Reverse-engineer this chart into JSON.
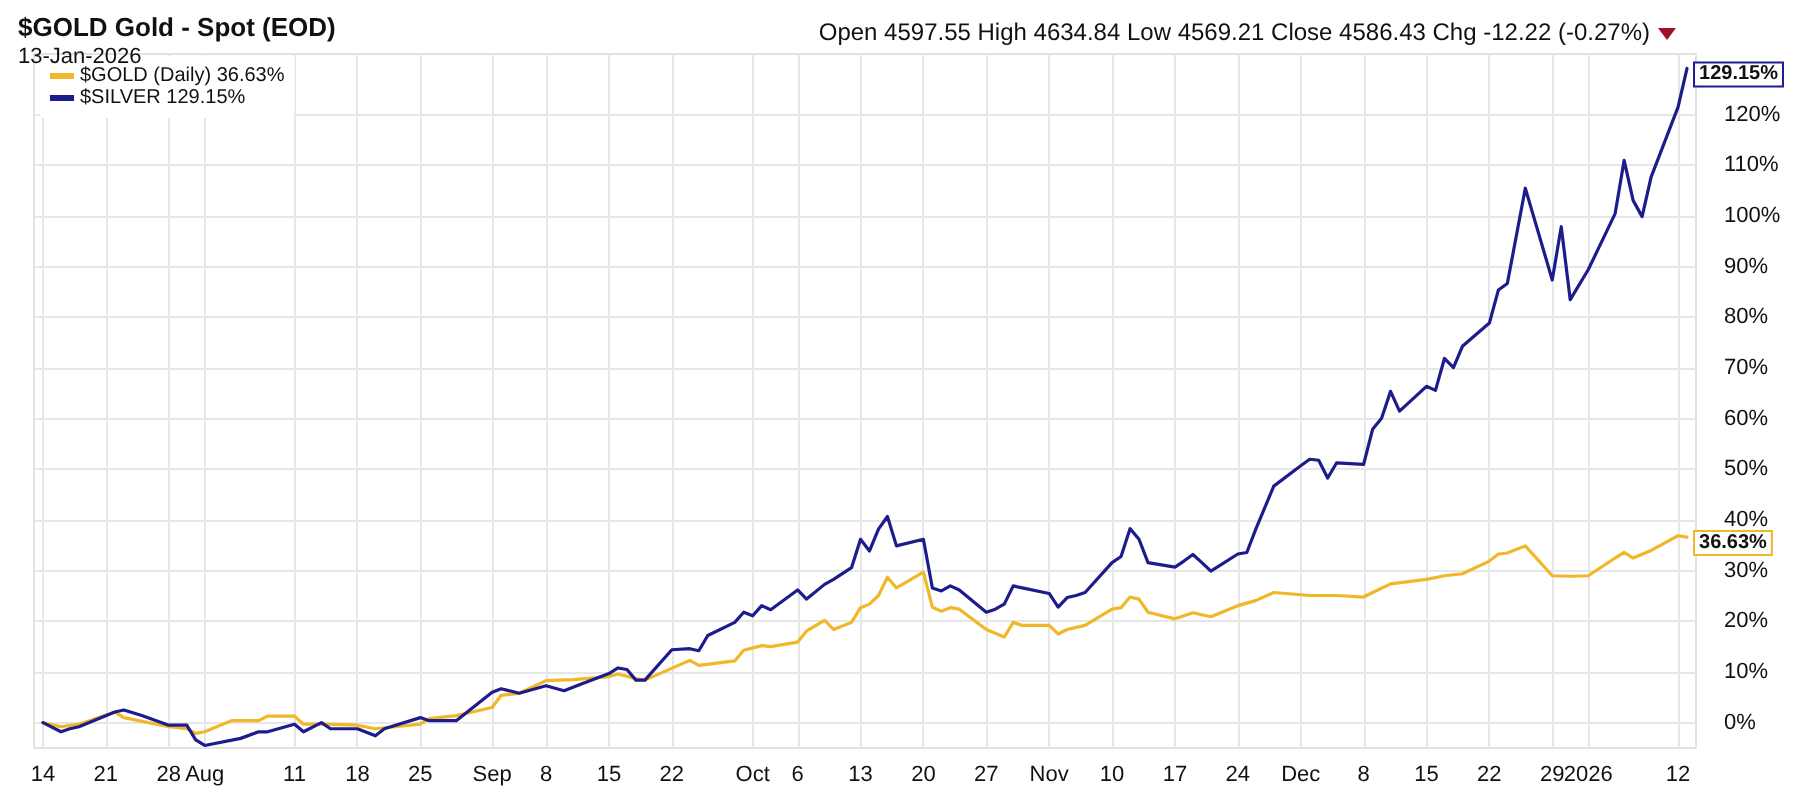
{
  "chart_data": {
    "type": "line",
    "title": "$GOLD Gold - Spot (EOD)",
    "subtitle": "13-Jan-2026",
    "annotations": [
      "Open 4597.55  High 4634.84  Low 4569.21  Close 4586.43  Chg -12.22 (-0.27%)",
      {
        "text": "129.15%",
        "x": "2026-01-13",
        "y": 129.15
      },
      {
        "text": "36.63%",
        "x": "2026-01-13",
        "y": 36.63
      }
    ],
    "xlim": [
      "2025-07-13",
      "2026-01-14"
    ],
    "xticks": [
      {
        "value": "2025-07-14",
        "label": "14"
      },
      {
        "value": "2025-07-21",
        "label": "21"
      },
      {
        "value": "2025-07-28",
        "label": "28"
      },
      {
        "value": "2025-08-01",
        "label": "Aug"
      },
      {
        "value": "2025-08-11",
        "label": "11"
      },
      {
        "value": "2025-08-18",
        "label": "18"
      },
      {
        "value": "2025-08-25",
        "label": "25"
      },
      {
        "value": "2025-09-02",
        "label": "Sep"
      },
      {
        "value": "2025-09-08",
        "label": "8"
      },
      {
        "value": "2025-09-15",
        "label": "15"
      },
      {
        "value": "2025-09-22",
        "label": "22"
      },
      {
        "value": "2025-10-01",
        "label": "Oct"
      },
      {
        "value": "2025-10-06",
        "label": "6"
      },
      {
        "value": "2025-10-13",
        "label": "13"
      },
      {
        "value": "2025-10-20",
        "label": "20"
      },
      {
        "value": "2025-10-27",
        "label": "27"
      },
      {
        "value": "2025-11-03",
        "label": "Nov"
      },
      {
        "value": "2025-11-10",
        "label": "10"
      },
      {
        "value": "2025-11-17",
        "label": "17"
      },
      {
        "value": "2025-11-24",
        "label": "24"
      },
      {
        "value": "2025-12-01",
        "label": "Dec"
      },
      {
        "value": "2025-12-08",
        "label": "8"
      },
      {
        "value": "2025-12-15",
        "label": "15"
      },
      {
        "value": "2025-12-22",
        "label": "22"
      },
      {
        "value": "2025-12-29",
        "label": "29"
      },
      {
        "value": "2026-01-02",
        "label": "2026"
      },
      {
        "value": "2026-01-12",
        "label": "12"
      }
    ],
    "ylim": [
      -5,
      132
    ],
    "yticks": [
      {
        "value": 0,
        "label": "0%"
      },
      {
        "value": 10,
        "label": "10%"
      },
      {
        "value": 20,
        "label": "20%"
      },
      {
        "value": 30,
        "label": "30%"
      },
      {
        "value": 40,
        "label": "40%"
      },
      {
        "value": 50,
        "label": "50%"
      },
      {
        "value": 60,
        "label": "60%"
      },
      {
        "value": 70,
        "label": "70%"
      },
      {
        "value": 80,
        "label": "80%"
      },
      {
        "value": 90,
        "label": "90%"
      },
      {
        "value": 100,
        "label": "100%"
      },
      {
        "value": 110,
        "label": "110%"
      },
      {
        "value": 120,
        "label": "120%"
      }
    ],
    "grid": true,
    "legend": "top left",
    "marker": "none",
    "line_style": "solid",
    "series": [
      {
        "name": "$GOLD (Daily) 36.63%",
        "color": "#f0b828",
        "x": [
          "2025-07-14",
          "2025-07-16",
          "2025-07-18",
          "2025-07-22",
          "2025-07-23",
          "2025-07-28",
          "2025-07-30",
          "2025-07-31",
          "2025-08-01",
          "2025-08-04",
          "2025-08-06",
          "2025-08-07",
          "2025-08-08",
          "2025-08-11",
          "2025-08-12",
          "2025-08-14",
          "2025-08-18",
          "2025-08-20",
          "2025-08-25",
          "2025-08-26",
          "2025-08-29",
          "2025-09-02",
          "2025-09-03",
          "2025-09-05",
          "2025-09-08",
          "2025-09-11",
          "2025-09-15",
          "2025-09-16",
          "2025-09-18",
          "2025-09-19",
          "2025-09-24",
          "2025-09-25",
          "2025-09-29",
          "2025-09-30",
          "2025-10-02",
          "2025-10-03",
          "2025-10-06",
          "2025-10-07",
          "2025-10-09",
          "2025-10-10",
          "2025-10-12",
          "2025-10-13",
          "2025-10-14",
          "2025-10-15",
          "2025-10-16",
          "2025-10-17",
          "2025-10-20",
          "2025-10-21",
          "2025-10-22",
          "2025-10-23",
          "2025-10-24",
          "2025-10-27",
          "2025-10-29",
          "2025-10-30",
          "2025-10-31",
          "2025-11-03",
          "2025-11-04",
          "2025-11-05",
          "2025-11-07",
          "2025-11-10",
          "2025-11-11",
          "2025-11-12",
          "2025-11-13",
          "2025-11-14",
          "2025-11-17",
          "2025-11-19",
          "2025-11-21",
          "2025-11-24",
          "2025-11-26",
          "2025-11-28",
          "2025-12-02",
          "2025-12-05",
          "2025-12-08",
          "2025-12-09",
          "2025-12-11",
          "2025-12-15",
          "2025-12-17",
          "2025-12-19",
          "2025-12-22",
          "2025-12-23",
          "2025-12-24",
          "2025-12-26",
          "2025-12-29",
          "2025-12-31",
          "2026-01-02",
          "2026-01-05",
          "2026-01-06",
          "2026-01-07",
          "2026-01-09",
          "2026-01-12",
          "2026-01-13"
        ],
        "values": [
          0,
          -0.8,
          -0.3,
          2.1,
          1.0,
          -0.8,
          -1.2,
          -2.1,
          -1.8,
          0.4,
          0.4,
          0.4,
          1.3,
          1.3,
          -0.3,
          -0.3,
          -0.5,
          -1.2,
          -0.3,
          0.8,
          1.4,
          3.0,
          5.4,
          5.8,
          8.3,
          8.5,
          9.1,
          9.6,
          8.7,
          8.4,
          12.3,
          11.3,
          12.2,
          14.3,
          15.2,
          15.0,
          15.9,
          18.1,
          20.2,
          18.4,
          19.8,
          22.7,
          23.4,
          25.1,
          28.7,
          26.6,
          29.7,
          22.8,
          22.0,
          22.7,
          22.4,
          18.4,
          16.9,
          19.8,
          19.2,
          19.2,
          17.5,
          18.4,
          19.2,
          22.4,
          22.7,
          24.8,
          24.4,
          21.8,
          20.5,
          21.7,
          20.9,
          23.1,
          24.1,
          25.7,
          25.1,
          25.1,
          24.8,
          25.7,
          27.4,
          28.3,
          29.0,
          29.4,
          31.9,
          33.3,
          33.5,
          34.9,
          29.0,
          28.9,
          29.0,
          32.5,
          33.6,
          32.5,
          34.0,
          36.9,
          36.63
        ]
      },
      {
        "name": "$SILVER 129.15%",
        "color": "#1c1c8c",
        "x": [
          "2025-07-14",
          "2025-07-16",
          "2025-07-17",
          "2025-07-18",
          "2025-07-22",
          "2025-07-23",
          "2025-07-25",
          "2025-07-28",
          "2025-07-30",
          "2025-07-31",
          "2025-08-01",
          "2025-08-05",
          "2025-08-07",
          "2025-08-08",
          "2025-08-11",
          "2025-08-12",
          "2025-08-14",
          "2025-08-15",
          "2025-08-18",
          "2025-08-20",
          "2025-08-21",
          "2025-08-25",
          "2025-08-26",
          "2025-08-29",
          "2025-09-02",
          "2025-09-03",
          "2025-09-05",
          "2025-09-08",
          "2025-09-10",
          "2025-09-12",
          "2025-09-15",
          "2025-09-16",
          "2025-09-17",
          "2025-09-18",
          "2025-09-19",
          "2025-09-22",
          "2025-09-24",
          "2025-09-25",
          "2025-09-26",
          "2025-09-29",
          "2025-09-30",
          "2025-10-01",
          "2025-10-02",
          "2025-10-03",
          "2025-10-06",
          "2025-10-07",
          "2025-10-09",
          "2025-10-10",
          "2025-10-12",
          "2025-10-13",
          "2025-10-14",
          "2025-10-15",
          "2025-10-16",
          "2025-10-17",
          "2025-10-20",
          "2025-10-21",
          "2025-10-22",
          "2025-10-23",
          "2025-10-24",
          "2025-10-27",
          "2025-10-28",
          "2025-10-29",
          "2025-10-30",
          "2025-10-31",
          "2025-11-03",
          "2025-11-04",
          "2025-11-05",
          "2025-11-06",
          "2025-11-07",
          "2025-11-10",
          "2025-11-11",
          "2025-11-12",
          "2025-11-13",
          "2025-11-14",
          "2025-11-17",
          "2025-11-18",
          "2025-11-19",
          "2025-11-20",
          "2025-11-21",
          "2025-11-24",
          "2025-11-25",
          "2025-11-26",
          "2025-11-28",
          "2025-12-01",
          "2025-12-02",
          "2025-12-03",
          "2025-12-04",
          "2025-12-05",
          "2025-12-08",
          "2025-12-09",
          "2025-12-10",
          "2025-12-11",
          "2025-12-12",
          "2025-12-15",
          "2025-12-16",
          "2025-12-17",
          "2025-12-18",
          "2025-12-19",
          "2025-12-22",
          "2025-12-23",
          "2025-12-24",
          "2025-12-26",
          "2025-12-29",
          "2025-12-30",
          "2025-12-31",
          "2026-01-02",
          "2026-01-05",
          "2026-01-06",
          "2026-01-07",
          "2026-01-08",
          "2026-01-09",
          "2026-01-12",
          "2026-01-13"
        ],
        "values": [
          0,
          -1.8,
          -1.2,
          -0.8,
          2.1,
          2.5,
          1.4,
          -0.5,
          -0.5,
          -3.4,
          -4.5,
          -3.1,
          -1.8,
          -1.8,
          -0.3,
          -1.8,
          0,
          -1.2,
          -1.2,
          -2.6,
          -1.2,
          1.0,
          0.4,
          0.4,
          6.0,
          6.7,
          5.8,
          7.3,
          6.3,
          7.7,
          9.7,
          10.8,
          10.5,
          8.4,
          8.4,
          14.4,
          14.6,
          14.2,
          17.2,
          19.8,
          21.8,
          21.1,
          23.1,
          22.3,
          26.2,
          24.4,
          27.3,
          28.3,
          30.6,
          36.2,
          33.9,
          38.2,
          40.7,
          34.9,
          36.2,
          26.6,
          26.0,
          27.0,
          26.2,
          21.8,
          22.4,
          23.4,
          27.0,
          26.6,
          25.5,
          22.8,
          24.7,
          25.1,
          25.7,
          31.6,
          32.8,
          38.3,
          36.2,
          31.6,
          30.7,
          31.9,
          33.2,
          31.6,
          29.9,
          33.3,
          33.6,
          38.2,
          46.7,
          50.7,
          52.0,
          51.8,
          48.3,
          51.3,
          51.0,
          57.9,
          60.1,
          65.4,
          61.5,
          66.4,
          65.6,
          71.9,
          70.1,
          74.3,
          78.9,
          85.4,
          86.7,
          105.5,
          87.4,
          97.9,
          83.5,
          89.4,
          100.5,
          111.0,
          103.1,
          99.9,
          107.7,
          121.5,
          129.15
        ]
      }
    ]
  }
}
